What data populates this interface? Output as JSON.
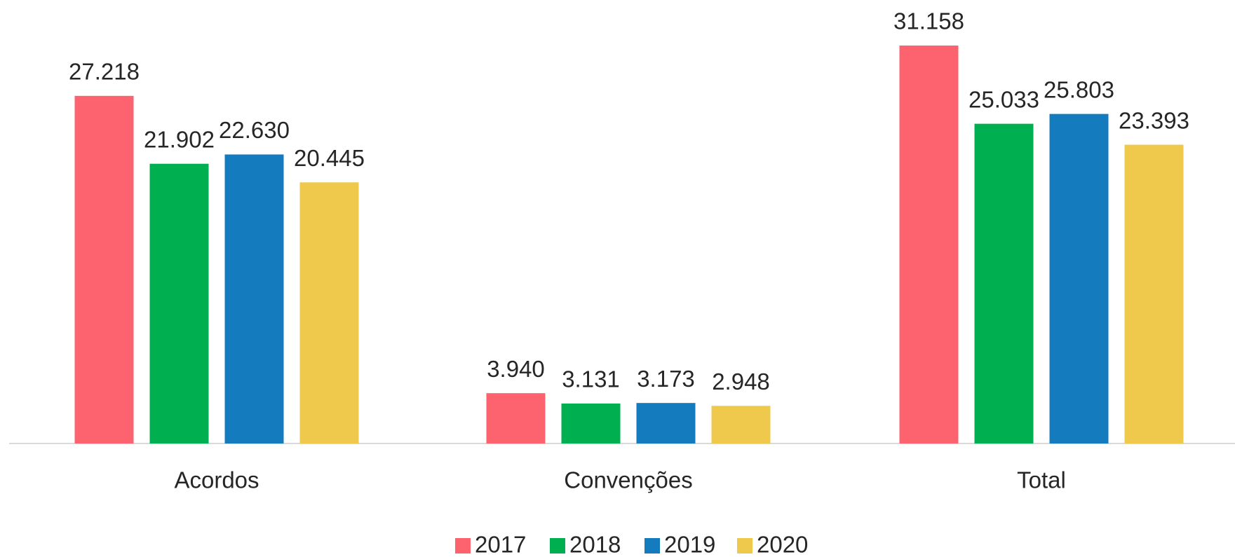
{
  "chart_data": {
    "type": "bar",
    "categories": [
      "Acordos",
      "Convenções",
      "Total"
    ],
    "series": [
      {
        "name": "2017",
        "color": "#fc636f",
        "values": [
          27218,
          3940,
          31158
        ],
        "value_labels": [
          "27.218",
          "3.940",
          "31.158"
        ]
      },
      {
        "name": "2018",
        "color": "#00b050",
        "values": [
          21902,
          3131,
          25033
        ],
        "value_labels": [
          "21.902",
          "3.131",
          "25.033"
        ]
      },
      {
        "name": "2019",
        "color": "#157bbf",
        "values": [
          22630,
          3173,
          25803
        ],
        "value_labels": [
          "22.630",
          "3.173",
          "25.803"
        ]
      },
      {
        "name": "2020",
        "color": "#efc94c",
        "values": [
          20445,
          2948,
          23393
        ],
        "value_labels": [
          "20.445",
          "2.948",
          "23.393"
        ]
      }
    ],
    "legend": "bottom"
  }
}
